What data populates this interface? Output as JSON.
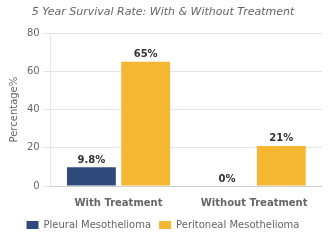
{
  "chart_data": {
    "type": "bar",
    "title": "5 Year Survival Rate: With & Without Treatment",
    "categories": [
      "With Treatment",
      "Without Treatment"
    ],
    "series": [
      {
        "name": "Pleural Mesothelioma",
        "color": "#2e4a7a",
        "values": [
          9.8,
          0
        ],
        "value_labels": [
          "9.8%",
          "0%"
        ]
      },
      {
        "name": "Peritoneal Mesothelioma",
        "color": "#f5b731",
        "values": [
          65,
          21
        ],
        "value_labels": [
          "65%",
          "21%"
        ]
      }
    ],
    "ylabel": "Percentage%",
    "ylim": [
      0,
      80
    ],
    "yticks": [
      0,
      20,
      40,
      60,
      80
    ],
    "grid": true,
    "legend": "bottom",
    "data_labels": true
  }
}
